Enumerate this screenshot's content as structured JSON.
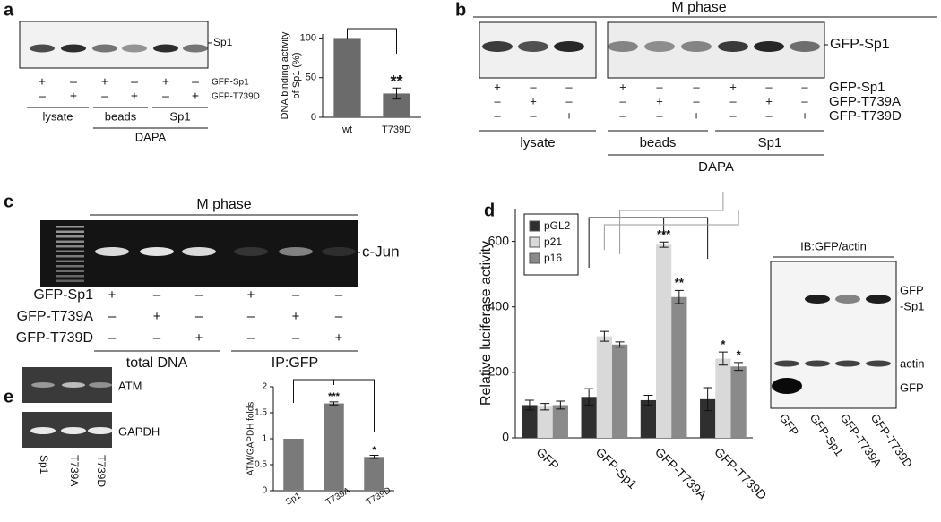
{
  "panel_labels": [
    "a",
    "b",
    "c",
    "d",
    "e"
  ],
  "panel_a": {
    "blot_label": "Sp1",
    "rows": [
      {
        "name": "GFP-Sp1",
        "signs": [
          "+",
          "–",
          "+",
          "–",
          "+",
          "–"
        ]
      },
      {
        "name": "GFP-T739D",
        "signs": [
          "–",
          "+",
          "–",
          "+",
          "–",
          "+"
        ]
      }
    ],
    "groups": [
      "lysate",
      "beads",
      "Sp1"
    ],
    "supergroup": "DAPA"
  },
  "panel_b": {
    "title": "M phase",
    "blot_label": "GFP-Sp1",
    "rows": [
      {
        "name": "GFP-Sp1",
        "signs": [
          "+",
          "–",
          "–",
          "+",
          "–",
          "–",
          "+",
          "–",
          "–"
        ]
      },
      {
        "name": "GFP-T739A",
        "signs": [
          "–",
          "+",
          "–",
          "–",
          "+",
          "–",
          "–",
          "+",
          "–"
        ]
      },
      {
        "name": "GFP-T739D",
        "signs": [
          "–",
          "–",
          "+",
          "–",
          "–",
          "+",
          "–",
          "–",
          "+"
        ]
      }
    ],
    "groups": [
      "lysate",
      "beads",
      "Sp1"
    ],
    "supergroup": "DAPA"
  },
  "panel_c": {
    "title": "M phase",
    "gel_label": "c-Jun",
    "rows": [
      {
        "name": "GFP-Sp1",
        "signs": [
          "+",
          "–",
          "–",
          "+",
          "–",
          "–"
        ]
      },
      {
        "name": "GFP-T739A",
        "signs": [
          "–",
          "+",
          "–",
          "–",
          "+",
          "–"
        ]
      },
      {
        "name": "GFP-T739D",
        "signs": [
          "–",
          "–",
          "+",
          "–",
          "–",
          "+"
        ]
      }
    ],
    "groups": [
      "total DNA",
      "IP:GFP"
    ]
  },
  "panel_d_blot": {
    "title": "IB:GFP/actin",
    "band_labels": [
      "GFP",
      "-Sp1",
      "actin",
      "GFP"
    ],
    "lanes": [
      "GFP",
      "GFP-Sp1",
      "GFP-T739A",
      "GFP-T739D"
    ]
  },
  "panel_e_gel": {
    "band_labels": [
      "ATM",
      "GAPDH"
    ],
    "lanes": [
      "Sp1",
      "T739A",
      "T739D"
    ]
  },
  "chart_data": [
    {
      "type": "bar",
      "ylabel": [
        "DNA binding activity",
        "of Sp1 (%)"
      ],
      "categories": [
        "wt",
        "T739D"
      ],
      "series": [
        {
          "color": "#6b6b6b",
          "values": [
            100,
            30
          ],
          "errors": [
            null,
            7
          ],
          "significance": [
            null,
            "**"
          ]
        }
      ],
      "ylim": [
        0,
        105
      ],
      "yticks": [
        0,
        50,
        100
      ]
    },
    {
      "type": "bar",
      "ylabel": "Relative luciferase activity",
      "categories": [
        "GFP",
        "GFP-Sp1",
        "GFP-T739A",
        "GFP-T739D"
      ],
      "series": [
        {
          "name": "pGL2",
          "color": "#2f2f2f",
          "values": [
            100,
            125,
            115,
            118
          ],
          "errors": [
            15,
            25,
            15,
            35
          ],
          "significance": [
            null,
            null,
            null,
            null
          ]
        },
        {
          "name": "p21",
          "color": "#d9d9d9",
          "values": [
            95,
            310,
            590,
            242
          ],
          "errors": [
            10,
            15,
            8,
            20
          ],
          "significance": [
            null,
            null,
            "***",
            "*"
          ]
        },
        {
          "name": "p16",
          "color": "#8a8a8a",
          "values": [
            100,
            285,
            430,
            218
          ],
          "errors": [
            12,
            8,
            20,
            12
          ],
          "significance": [
            null,
            null,
            "**",
            "*"
          ]
        }
      ],
      "ylim": [
        0,
        700
      ],
      "yticks": [
        0,
        200,
        400,
        600
      ],
      "legend": "top-left"
    },
    {
      "type": "bar",
      "ylabel": "ATM/GAPDH folds",
      "categories": [
        "Sp1",
        "T739A",
        "T739D"
      ],
      "series": [
        {
          "color": "#7a7a7a",
          "values": [
            1,
            1.68,
            0.65
          ],
          "errors": [
            null,
            0.03,
            0.03
          ],
          "significance": [
            null,
            "***",
            "*"
          ]
        }
      ],
      "ylim": [
        0,
        2
      ],
      "yticks": [
        0,
        0.5,
        1,
        1.5,
        2
      ]
    }
  ]
}
